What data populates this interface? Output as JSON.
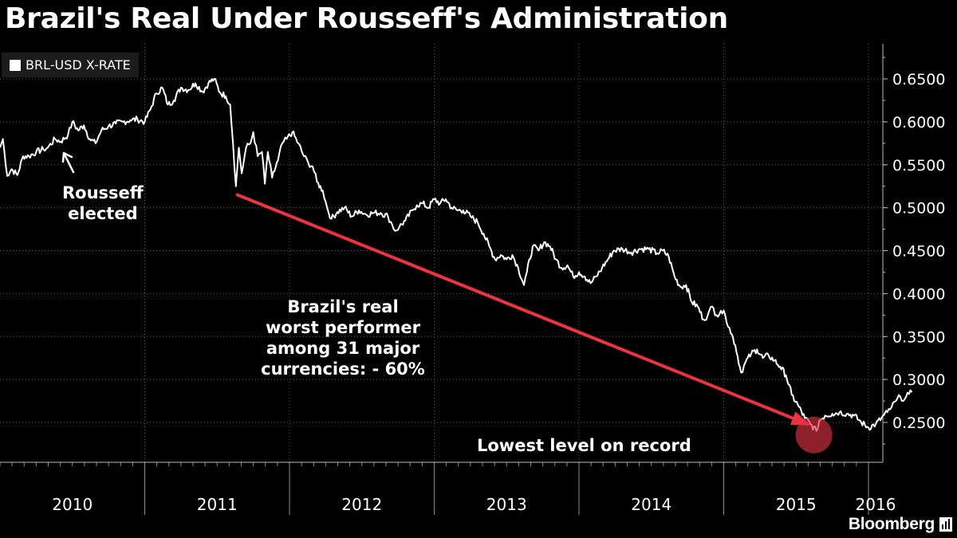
{
  "chart_data": {
    "type": "line",
    "title": "Brazil's Real Under Rousseff's Administration",
    "ylim": [
      0.215,
      0.685
    ],
    "y_ticks": [
      "0.2500",
      "0.3000",
      "0.3500",
      "0.4000",
      "0.4500",
      "0.5000",
      "0.5500",
      "0.6000",
      "0.6500"
    ],
    "x_ticks": [
      "2010",
      "2011",
      "2012",
      "2013",
      "2014",
      "2015",
      "2016"
    ],
    "legend": {
      "position": "top-left"
    },
    "grid": true,
    "series": [
      {
        "name": "BRL-USD X-RATE",
        "color": "#ffffff",
        "points": [
          [
            2010.0,
            0.57
          ],
          [
            2010.02,
            0.58
          ],
          [
            2010.05,
            0.537
          ],
          [
            2010.08,
            0.545
          ],
          [
            2010.12,
            0.538
          ],
          [
            2010.16,
            0.56
          ],
          [
            2010.2,
            0.56
          ],
          [
            2010.25,
            0.565
          ],
          [
            2010.3,
            0.568
          ],
          [
            2010.33,
            0.57
          ],
          [
            2010.38,
            0.58
          ],
          [
            2010.42,
            0.577
          ],
          [
            2010.47,
            0.585
          ],
          [
            2010.5,
            0.6
          ],
          [
            2010.54,
            0.59
          ],
          [
            2010.58,
            0.596
          ],
          [
            2010.62,
            0.58
          ],
          [
            2010.66,
            0.575
          ],
          [
            2010.7,
            0.59
          ],
          [
            2010.75,
            0.595
          ],
          [
            2010.8,
            0.598
          ],
          [
            2010.85,
            0.6
          ],
          [
            2010.9,
            0.602
          ],
          [
            2010.95,
            0.603
          ],
          [
            2011.0,
            0.6
          ],
          [
            2011.04,
            0.615
          ],
          [
            2011.08,
            0.633
          ],
          [
            2011.12,
            0.64
          ],
          [
            2011.16,
            0.62
          ],
          [
            2011.2,
            0.625
          ],
          [
            2011.25,
            0.64
          ],
          [
            2011.3,
            0.637
          ],
          [
            2011.35,
            0.645
          ],
          [
            2011.4,
            0.635
          ],
          [
            2011.44,
            0.645
          ],
          [
            2011.48,
            0.65
          ],
          [
            2011.52,
            0.634
          ],
          [
            2011.56,
            0.63
          ],
          [
            2011.59,
            0.62
          ],
          [
            2011.61,
            0.575
          ],
          [
            2011.63,
            0.525
          ],
          [
            2011.65,
            0.57
          ],
          [
            2011.67,
            0.54
          ],
          [
            2011.7,
            0.57
          ],
          [
            2011.73,
            0.575
          ],
          [
            2011.75,
            0.588
          ],
          [
            2011.78,
            0.56
          ],
          [
            2011.81,
            0.565
          ],
          [
            2011.83,
            0.528
          ],
          [
            2011.85,
            0.565
          ],
          [
            2011.88,
            0.535
          ],
          [
            2011.92,
            0.555
          ],
          [
            2011.95,
            0.575
          ],
          [
            2011.98,
            0.58
          ],
          [
            2012.02,
            0.588
          ],
          [
            2012.06,
            0.575
          ],
          [
            2012.1,
            0.56
          ],
          [
            2012.13,
            0.552
          ],
          [
            2012.16,
            0.548
          ],
          [
            2012.19,
            0.53
          ],
          [
            2012.23,
            0.52
          ],
          [
            2012.26,
            0.5
          ],
          [
            2012.29,
            0.487
          ],
          [
            2012.33,
            0.495
          ],
          [
            2012.38,
            0.5
          ],
          [
            2012.43,
            0.49
          ],
          [
            2012.48,
            0.497
          ],
          [
            2012.53,
            0.492
          ],
          [
            2012.58,
            0.494
          ],
          [
            2012.63,
            0.494
          ],
          [
            2012.68,
            0.49
          ],
          [
            2012.71,
            0.48
          ],
          [
            2012.73,
            0.473
          ],
          [
            2012.76,
            0.478
          ],
          [
            2012.8,
            0.485
          ],
          [
            2012.85,
            0.497
          ],
          [
            2012.88,
            0.503
          ],
          [
            2012.92,
            0.505
          ],
          [
            2012.96,
            0.5
          ],
          [
            2013.0,
            0.51
          ],
          [
            2013.04,
            0.505
          ],
          [
            2013.08,
            0.51
          ],
          [
            2013.12,
            0.5
          ],
          [
            2013.16,
            0.497
          ],
          [
            2013.2,
            0.497
          ],
          [
            2013.25,
            0.49
          ],
          [
            2013.3,
            0.483
          ],
          [
            2013.34,
            0.47
          ],
          [
            2013.38,
            0.455
          ],
          [
            2013.42,
            0.44
          ],
          [
            2013.46,
            0.445
          ],
          [
            2013.5,
            0.44
          ],
          [
            2013.54,
            0.445
          ],
          [
            2013.58,
            0.43
          ],
          [
            2013.62,
            0.41
          ],
          [
            2013.64,
            0.425
          ],
          [
            2013.68,
            0.455
          ],
          [
            2013.72,
            0.45
          ],
          [
            2013.76,
            0.46
          ],
          [
            2013.8,
            0.455
          ],
          [
            2013.84,
            0.44
          ],
          [
            2013.88,
            0.43
          ],
          [
            2013.92,
            0.433
          ],
          [
            2013.96,
            0.42
          ],
          [
            2014.0,
            0.425
          ],
          [
            2014.04,
            0.42
          ],
          [
            2014.08,
            0.412
          ],
          [
            2014.12,
            0.42
          ],
          [
            2014.16,
            0.43
          ],
          [
            2014.2,
            0.44
          ],
          [
            2014.24,
            0.45
          ],
          [
            2014.3,
            0.452
          ],
          [
            2014.36,
            0.448
          ],
          [
            2014.42,
            0.452
          ],
          [
            2014.48,
            0.452
          ],
          [
            2014.54,
            0.447
          ],
          [
            2014.58,
            0.45
          ],
          [
            2014.62,
            0.443
          ],
          [
            2014.66,
            0.42
          ],
          [
            2014.7,
            0.408
          ],
          [
            2014.74,
            0.41
          ],
          [
            2014.78,
            0.39
          ],
          [
            2014.82,
            0.385
          ],
          [
            2014.86,
            0.37
          ],
          [
            2014.89,
            0.375
          ],
          [
            2014.92,
            0.385
          ],
          [
            2014.95,
            0.375
          ],
          [
            2014.98,
            0.38
          ],
          [
            2015.01,
            0.375
          ],
          [
            2015.04,
            0.36
          ],
          [
            2015.08,
            0.34
          ],
          [
            2015.12,
            0.308
          ],
          [
            2015.15,
            0.32
          ],
          [
            2015.19,
            0.33
          ],
          [
            2015.23,
            0.335
          ],
          [
            2015.27,
            0.325
          ],
          [
            2015.31,
            0.328
          ],
          [
            2015.35,
            0.322
          ],
          [
            2015.39,
            0.315
          ],
          [
            2015.43,
            0.305
          ],
          [
            2015.47,
            0.282
          ],
          [
            2015.52,
            0.268
          ],
          [
            2015.56,
            0.255
          ],
          [
            2015.6,
            0.248
          ],
          [
            2015.64,
            0.24
          ],
          [
            2015.66,
            0.252
          ],
          [
            2015.7,
            0.258
          ],
          [
            2015.75,
            0.26
          ],
          [
            2015.8,
            0.262
          ],
          [
            2015.85,
            0.26
          ],
          [
            2015.9,
            0.258
          ],
          [
            2015.95,
            0.25
          ],
          [
            2016.0,
            0.244
          ],
          [
            2016.05,
            0.248
          ],
          [
            2016.09,
            0.255
          ],
          [
            2016.13,
            0.262
          ],
          [
            2016.16,
            0.268
          ],
          [
            2016.19,
            0.275
          ],
          [
            2016.22,
            0.28
          ],
          [
            2016.25,
            0.277
          ],
          [
            2016.28,
            0.283
          ],
          [
            2016.3,
            0.285
          ]
        ]
      }
    ],
    "annotations": [
      {
        "text": [
          "Rousseff",
          "elected"
        ]
      },
      {
        "text": [
          "Brazil's real",
          "worst performer",
          "among 31 major",
          "currencies: - 60%"
        ],
        "color": "#ffffff"
      },
      {
        "text": [
          "Lowest level on record"
        ]
      }
    ],
    "trend_arrow": {
      "from": [
        2011.64,
        0.515
      ],
      "to": [
        2015.58,
        0.248
      ],
      "color": "#ee3240"
    },
    "low_marker": {
      "at": [
        2015.64,
        0.24
      ],
      "color": "#d9313f"
    }
  },
  "source": {
    "brand": "Bloomberg"
  }
}
